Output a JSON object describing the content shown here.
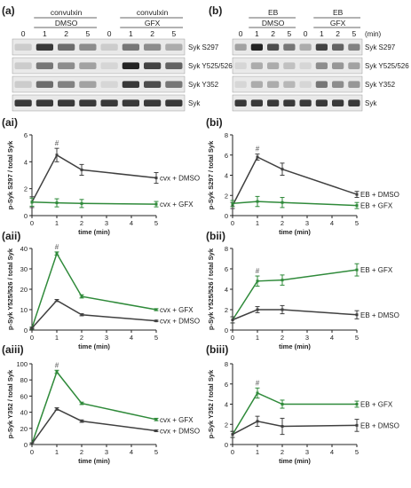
{
  "figure": {
    "blots": [
      {
        "panel_label": "(a)",
        "treatment_top": "convulxin",
        "group_left": "DMSO",
        "group_right": "GFX",
        "time_unit": "",
        "times": [
          "0",
          "1",
          "2",
          "5",
          "0",
          "1",
          "2",
          "5"
        ],
        "rows": [
          "Syk S297",
          "Syk Y525/526",
          "Syk Y352",
          "Syk"
        ],
        "intensity": [
          [
            0.15,
            0.85,
            0.6,
            0.45,
            0.15,
            0.55,
            0.45,
            0.3
          ],
          [
            0.15,
            0.55,
            0.45,
            0.35,
            0.1,
            0.95,
            0.8,
            0.65
          ],
          [
            0.15,
            0.6,
            0.5,
            0.35,
            0.1,
            0.85,
            0.75,
            0.55
          ],
          [
            0.85,
            0.85,
            0.85,
            0.85,
            0.85,
            0.85,
            0.85,
            0.85
          ]
        ]
      },
      {
        "panel_label": "(b)",
        "treatment_top": "EB",
        "group_left": "DMSO",
        "group_right": "GFX",
        "time_unit": "(min)",
        "times": [
          "0",
          "1",
          "2",
          "5",
          "0",
          "1",
          "2",
          "5"
        ],
        "rows": [
          "Syk S297",
          "Syk Y525/526",
          "Syk Y352",
          "Syk"
        ],
        "intensity": [
          [
            0.35,
            0.95,
            0.75,
            0.55,
            0.3,
            0.8,
            0.65,
            0.5
          ],
          [
            0.1,
            0.3,
            0.3,
            0.2,
            0.1,
            0.45,
            0.4,
            0.35
          ],
          [
            0.1,
            0.3,
            0.3,
            0.25,
            0.1,
            0.55,
            0.45,
            0.4
          ],
          [
            0.85,
            0.85,
            0.85,
            0.85,
            0.85,
            0.85,
            0.85,
            0.85
          ]
        ]
      }
    ]
  },
  "chart_data": [
    {
      "panel_label": "(ai)",
      "type": "line",
      "x": [
        0,
        1,
        2,
        5
      ],
      "xlim": [
        0,
        5
      ],
      "ylim": [
        0,
        6
      ],
      "yticks": [
        0,
        2,
        4,
        6
      ],
      "xlabel": "time (min)",
      "ylabel": "p-Syk S297 / total Syk",
      "sig_x": 1,
      "sig_mark": "#",
      "series": [
        {
          "name": "cvx + DMSO",
          "color": "#404040",
          "values": [
            1.0,
            4.5,
            3.4,
            2.8
          ],
          "errors": [
            0.4,
            0.5,
            0.4,
            0.4
          ]
        },
        {
          "name": "cvx + GFX",
          "color": "#2f8a3a",
          "values": [
            1.0,
            0.95,
            0.9,
            0.85
          ],
          "errors": [
            0.3,
            0.3,
            0.3,
            0.2
          ]
        }
      ]
    },
    {
      "panel_label": "(bi)",
      "type": "line",
      "x": [
        0,
        1,
        2,
        5
      ],
      "xlim": [
        0,
        5
      ],
      "ylim": [
        0,
        8
      ],
      "yticks": [
        0,
        2,
        4,
        6,
        8
      ],
      "xlabel": "time (min)",
      "ylabel": "p-Syk S297 / total Syk",
      "sig_x": 1,
      "sig_mark": "#",
      "series": [
        {
          "name": "EB + DMSO",
          "color": "#404040",
          "values": [
            1.0,
            5.8,
            4.6,
            2.1
          ],
          "errors": [
            0.3,
            0.3,
            0.6,
            0.3
          ]
        },
        {
          "name": "EB + GFX",
          "color": "#2f8a3a",
          "values": [
            1.2,
            1.4,
            1.3,
            1.0
          ],
          "errors": [
            0.3,
            0.5,
            0.5,
            0.3
          ]
        }
      ]
    },
    {
      "panel_label": "(aii)",
      "type": "line",
      "x": [
        0,
        1,
        2,
        5
      ],
      "xlim": [
        0,
        5
      ],
      "ylim": [
        0,
        40
      ],
      "yticks": [
        0,
        10,
        20,
        30,
        40
      ],
      "xlabel": "time (min)",
      "ylabel": "p-Syk Y525/526 / total Syk",
      "sig_x": 1,
      "sig_mark": "#",
      "series": [
        {
          "name": "cvx + GFX",
          "color": "#2f8a3a",
          "values": [
            1.0,
            37.5,
            16.5,
            10.0
          ],
          "errors": [
            0.5,
            0.8,
            0.8,
            0.5
          ]
        },
        {
          "name": "cvx + DMSO",
          "color": "#404040",
          "values": [
            1.0,
            14.5,
            7.5,
            4.5
          ],
          "errors": [
            0.3,
            0.5,
            0.5,
            0.3
          ]
        }
      ]
    },
    {
      "panel_label": "(bii)",
      "type": "line",
      "x": [
        0,
        1,
        2,
        5
      ],
      "xlim": [
        0,
        5
      ],
      "ylim": [
        0,
        8
      ],
      "yticks": [
        0,
        2,
        4,
        6,
        8
      ],
      "xlabel": "time (min)",
      "ylabel": "p-Syk Y525/526 / total Syk",
      "sig_x": 1,
      "sig_mark": "#",
      "series": [
        {
          "name": "EB + GFX",
          "color": "#2f8a3a",
          "values": [
            1.0,
            4.8,
            4.9,
            5.9
          ],
          "errors": [
            0.3,
            0.5,
            0.5,
            0.6
          ]
        },
        {
          "name": "EB + DMSO",
          "color": "#404040",
          "values": [
            1.0,
            2.0,
            2.0,
            1.5
          ],
          "errors": [
            0.3,
            0.3,
            0.4,
            0.4
          ]
        }
      ]
    },
    {
      "panel_label": "(aiii)",
      "type": "line",
      "x": [
        0,
        1,
        2,
        5
      ],
      "xlim": [
        0,
        5
      ],
      "ylim": [
        0,
        100
      ],
      "yticks": [
        0,
        20,
        40,
        60,
        80,
        100
      ],
      "xlabel": "time (min)",
      "ylabel": "p-Syk Y352 / total Syk",
      "sig_x": 1,
      "sig_mark": "#",
      "series": [
        {
          "name": "cvx + GFX",
          "color": "#2f8a3a",
          "values": [
            1.0,
            90.0,
            51.0,
            31.0
          ],
          "errors": [
            1.0,
            2.0,
            1.5,
            1.5
          ]
        },
        {
          "name": "cvx + DMSO",
          "color": "#404040",
          "values": [
            1.0,
            44.0,
            29.0,
            17.0
          ],
          "errors": [
            1.0,
            1.5,
            1.5,
            1.0
          ]
        }
      ]
    },
    {
      "panel_label": "(biii)",
      "type": "line",
      "x": [
        0,
        1,
        2,
        5
      ],
      "xlim": [
        0,
        5
      ],
      "ylim": [
        0,
        8
      ],
      "yticks": [
        0,
        2,
        4,
        6,
        8
      ],
      "xlabel": "time (min)",
      "ylabel": "p-Syk Y352 / total Syk",
      "sig_x": 1,
      "sig_mark": "#",
      "series": [
        {
          "name": "EB + GFX",
          "color": "#2f8a3a",
          "values": [
            1.0,
            5.1,
            4.0,
            4.0
          ],
          "errors": [
            0.3,
            0.5,
            0.4,
            0.3
          ]
        },
        {
          "name": "EB + DMSO",
          "color": "#404040",
          "values": [
            1.0,
            2.3,
            1.8,
            1.9
          ],
          "errors": [
            0.3,
            0.5,
            0.8,
            0.6
          ]
        }
      ]
    }
  ]
}
